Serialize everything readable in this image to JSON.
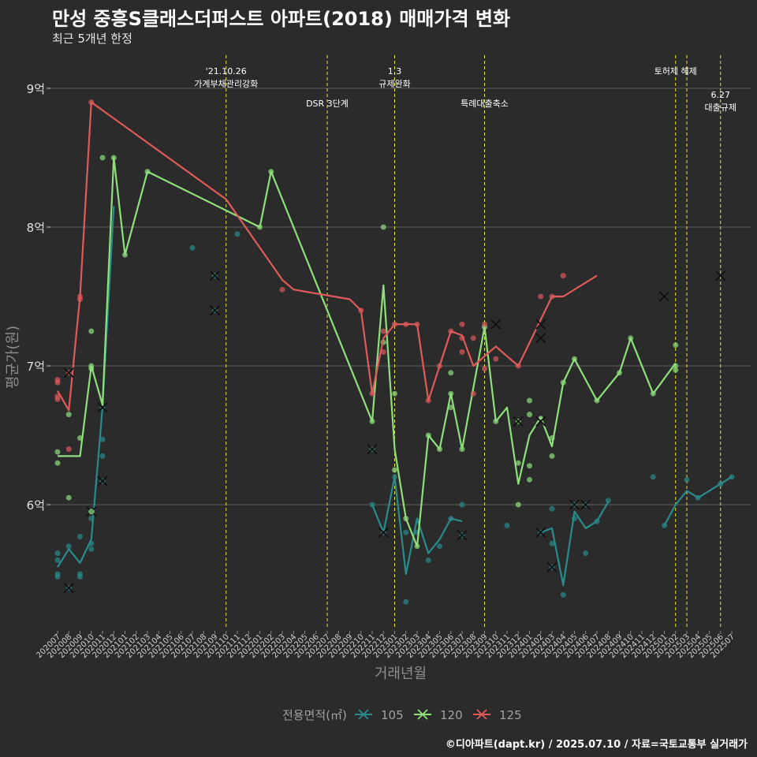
{
  "header": {
    "title": "만성 중흥S클래스더퍼스트 아파트(2018) 매매가격 변화",
    "subtitle": "최근 5개년 한정"
  },
  "caption": "©디아파트(dapt.kr) / 2025.07.10 / 자료=국토교통부 실거래가",
  "colors": {
    "105": "#2a8c8a",
    "120": "#8ee07a",
    "125": "#e05a5a",
    "vline": "#e5e53a",
    "grid": "#5e5e5e",
    "background": "#2b2b2c"
  },
  "chart_data": {
    "type": "line",
    "xlabel": "거래년월",
    "ylabel": "평균가(원)",
    "ylim": [
      5.1,
      9.25
    ],
    "yticks": [
      {
        "value": 6,
        "label": "6억"
      },
      {
        "value": 7,
        "label": "7억"
      },
      {
        "value": 8,
        "label": "8억"
      },
      {
        "value": 9,
        "label": "9억"
      }
    ],
    "grid": true,
    "legend": {
      "title": "전용면적(㎡)",
      "position": "bottom"
    },
    "categories": [
      "202007",
      "202008",
      "202009",
      "202010",
      "202011",
      "202012",
      "202101",
      "202102",
      "202103",
      "202104",
      "202105",
      "202106",
      "202107",
      "202108",
      "202109",
      "202110",
      "202111",
      "202112",
      "202201",
      "202202",
      "202203",
      "202204",
      "202205",
      "202206",
      "202207",
      "202208",
      "202209",
      "202210",
      "202211",
      "202212",
      "202301",
      "202302",
      "202303",
      "202304",
      "202305",
      "202306",
      "202307",
      "202308",
      "202309",
      "202310",
      "202311",
      "202312",
      "202401",
      "202402",
      "202403",
      "202404",
      "202405",
      "202406",
      "202407",
      "202408",
      "202409",
      "202410",
      "202411",
      "202412",
      "202501",
      "202502",
      "202503",
      "202504",
      "202505",
      "202506",
      "202507"
    ],
    "series": [
      {
        "name": "105",
        "line": [
          [
            0,
            5.55
          ],
          [
            1,
            5.68
          ],
          [
            2,
            5.58
          ],
          [
            3,
            5.75
          ],
          [
            4,
            6.7
          ],
          [
            5,
            8.15
          ],
          [
            null,
            null
          ],
          [
            28,
            6.0
          ],
          [
            29,
            5.8
          ],
          [
            30,
            6.2
          ],
          [
            31,
            5.5
          ],
          [
            32,
            5.9
          ],
          [
            33,
            5.65
          ],
          [
            34,
            5.75
          ],
          [
            35,
            5.9
          ],
          [
            36,
            5.88
          ],
          [
            null,
            null
          ],
          [
            43,
            5.8
          ],
          [
            44,
            5.83
          ],
          [
            45,
            5.42
          ],
          [
            46,
            5.95
          ],
          [
            47,
            5.83
          ],
          [
            48,
            5.88
          ],
          [
            49,
            6.02
          ],
          [
            null,
            null
          ],
          [
            54,
            5.85
          ],
          [
            55,
            6.0
          ],
          [
            56,
            6.1
          ],
          [
            57,
            6.05
          ],
          [
            59,
            6.15
          ],
          [
            60,
            6.2
          ]
        ],
        "points": [
          [
            0,
            5.65
          ],
          [
            0,
            5.6
          ],
          [
            0,
            5.5
          ],
          [
            0,
            5.48
          ],
          [
            1,
            5.4
          ],
          [
            1,
            5.7
          ],
          [
            2,
            5.77
          ],
          [
            2,
            5.5
          ],
          [
            2,
            5.48
          ],
          [
            3,
            5.95
          ],
          [
            3,
            5.9
          ],
          [
            3,
            5.72
          ],
          [
            3,
            5.68
          ],
          [
            4,
            6.47
          ],
          [
            4,
            6.35
          ],
          [
            4,
            6.17
          ],
          [
            4,
            6.7
          ],
          [
            12,
            7.85
          ],
          [
            14,
            7.65
          ],
          [
            14,
            7.4
          ],
          [
            16,
            7.95
          ],
          [
            28,
            6.4
          ],
          [
            28,
            6.0
          ],
          [
            29,
            5.8
          ],
          [
            30,
            6.2
          ],
          [
            31,
            5.3
          ],
          [
            31,
            5.8
          ],
          [
            32,
            5.8
          ],
          [
            33,
            5.6
          ],
          [
            34,
            5.7
          ],
          [
            35,
            5.9
          ],
          [
            36,
            6.0
          ],
          [
            36,
            5.78
          ],
          [
            40,
            5.85
          ],
          [
            43,
            5.8
          ],
          [
            44,
            5.55
          ],
          [
            44,
            5.72
          ],
          [
            44,
            5.97
          ],
          [
            45,
            5.35
          ],
          [
            46,
            6.0
          ],
          [
            46,
            5.9
          ],
          [
            47,
            6.0
          ],
          [
            47,
            5.65
          ],
          [
            48,
            5.88
          ],
          [
            49,
            6.03
          ],
          [
            53,
            6.2
          ],
          [
            54,
            5.85
          ],
          [
            56,
            6.18
          ],
          [
            57,
            6.05
          ],
          [
            59,
            6.15
          ],
          [
            60,
            6.2
          ]
        ]
      },
      {
        "name": "120",
        "line": [
          [
            0,
            6.35
          ],
          [
            1,
            6.35
          ],
          [
            2,
            6.35
          ],
          [
            3,
            7.0
          ],
          [
            4,
            6.72
          ],
          [
            5,
            8.5
          ],
          [
            6,
            7.8
          ],
          [
            8,
            8.4
          ],
          [
            18,
            8.0
          ],
          [
            19,
            8.4
          ],
          [
            28,
            6.6
          ],
          [
            29,
            7.58
          ],
          [
            30,
            6.4
          ],
          [
            31,
            5.9
          ],
          [
            32,
            5.7
          ],
          [
            33,
            6.5
          ],
          [
            34,
            6.4
          ],
          [
            35,
            6.8
          ],
          [
            36,
            6.4
          ],
          [
            38,
            7.28
          ],
          [
            39,
            6.6
          ],
          [
            40,
            6.7
          ],
          [
            41,
            6.15
          ],
          [
            42,
            6.5
          ],
          [
            43,
            6.63
          ],
          [
            44,
            6.42
          ],
          [
            45,
            6.88
          ],
          [
            46,
            7.05
          ],
          [
            48,
            6.75
          ],
          [
            50,
            6.95
          ],
          [
            51,
            7.2
          ],
          [
            53,
            6.8
          ],
          [
            55,
            7.02
          ]
        ],
        "points": [
          [
            0,
            6.38
          ],
          [
            0,
            6.3
          ],
          [
            1,
            6.65
          ],
          [
            1,
            6.05
          ],
          [
            2,
            6.48
          ],
          [
            3,
            6.98
          ],
          [
            3,
            7.0
          ],
          [
            3,
            7.25
          ],
          [
            3,
            5.95
          ],
          [
            4,
            8.5
          ],
          [
            5,
            8.5
          ],
          [
            6,
            7.8
          ],
          [
            8,
            8.4
          ],
          [
            18,
            8.0
          ],
          [
            19,
            8.4
          ],
          [
            28,
            6.6
          ],
          [
            29,
            7.17
          ],
          [
            29,
            8.0
          ],
          [
            30,
            6.8
          ],
          [
            30,
            6.25
          ],
          [
            31,
            5.9
          ],
          [
            32,
            5.7
          ],
          [
            33,
            6.5
          ],
          [
            34,
            6.4
          ],
          [
            35,
            6.8
          ],
          [
            35,
            6.95
          ],
          [
            35,
            6.7
          ],
          [
            36,
            6.4
          ],
          [
            38,
            7.28
          ],
          [
            39,
            6.6
          ],
          [
            41,
            6.6
          ],
          [
            41,
            6.3
          ],
          [
            41,
            6.0
          ],
          [
            42,
            6.75
          ],
          [
            42,
            6.65
          ],
          [
            42,
            6.28
          ],
          [
            42,
            6.18
          ],
          [
            43,
            6.62
          ],
          [
            44,
            6.48
          ],
          [
            44,
            6.35
          ],
          [
            45,
            6.88
          ],
          [
            46,
            7.05
          ],
          [
            48,
            6.75
          ],
          [
            50,
            6.95
          ],
          [
            51,
            7.2
          ],
          [
            53,
            6.8
          ],
          [
            55,
            7.15
          ],
          [
            55,
            7.0
          ],
          [
            55,
            6.97
          ]
        ]
      },
      {
        "name": "125",
        "line": [
          [
            0,
            6.82
          ],
          [
            1,
            6.68
          ],
          [
            2,
            7.5
          ],
          [
            3,
            8.9
          ],
          [
            15,
            8.2
          ],
          [
            20,
            7.62
          ],
          [
            21,
            7.55
          ],
          [
            26,
            7.48
          ],
          [
            27,
            7.4
          ],
          [
            28,
            6.8
          ],
          [
            29,
            7.2
          ],
          [
            30,
            7.3
          ],
          [
            31,
            7.3
          ],
          [
            32,
            7.3
          ],
          [
            33,
            6.75
          ],
          [
            34,
            7.0
          ],
          [
            35,
            7.25
          ],
          [
            36,
            7.22
          ],
          [
            37,
            7.0
          ],
          [
            39,
            7.14
          ],
          [
            40,
            7.07
          ],
          [
            41,
            7.0
          ],
          [
            44,
            7.5
          ],
          [
            45,
            7.5
          ],
          [
            48,
            7.65
          ]
        ],
        "points": [
          [
            0,
            6.9
          ],
          [
            0,
            6.88
          ],
          [
            0,
            6.78
          ],
          [
            0,
            6.76
          ],
          [
            1,
            6.95
          ],
          [
            1,
            6.4
          ],
          [
            2,
            7.5
          ],
          [
            2,
            7.48
          ],
          [
            3,
            8.9
          ],
          [
            20,
            7.55
          ],
          [
            27,
            7.4
          ],
          [
            28,
            6.8
          ],
          [
            29,
            7.25
          ],
          [
            29,
            7.1
          ],
          [
            30,
            7.3
          ],
          [
            31,
            7.3
          ],
          [
            32,
            7.3
          ],
          [
            33,
            6.75
          ],
          [
            34,
            7.0
          ],
          [
            35,
            7.25
          ],
          [
            36,
            7.3
          ],
          [
            36,
            7.2
          ],
          [
            36,
            7.1
          ],
          [
            37,
            7.2
          ],
          [
            37,
            6.8
          ],
          [
            38,
            7.3
          ],
          [
            38,
            6.98
          ],
          [
            39,
            7.05
          ],
          [
            41,
            7.0
          ],
          [
            43,
            7.5
          ],
          [
            44,
            7.5
          ],
          [
            45,
            7.65
          ]
        ]
      }
    ],
    "crosses": {
      "105": [
        [
          1,
          5.4
        ],
        [
          4,
          6.17
        ],
        [
          3,
          5.95
        ],
        [
          4,
          6.7
        ],
        [
          14,
          7.65
        ],
        [
          14,
          7.4
        ],
        [
          28,
          6.4
        ],
        [
          29,
          5.8
        ],
        [
          36,
          5.78
        ],
        [
          43,
          5.8
        ],
        [
          44,
          5.55
        ],
        [
          46,
          6.0
        ],
        [
          47,
          6.0
        ]
      ],
      "120": [
        [
          39,
          7.3
        ],
        [
          41,
          6.6
        ],
        [
          43,
          6.6
        ]
      ],
      "125": [
        [
          1,
          6.95
        ],
        [
          43,
          7.3
        ],
        [
          43,
          7.2
        ],
        [
          54,
          7.5
        ],
        [
          59,
          7.65
        ]
      ]
    },
    "events": [
      {
        "x": 15.0,
        "lines": [
          "'21.10.26",
          "가계부채관리강화"
        ],
        "row": 0
      },
      {
        "x": 24.0,
        "lines": [
          "DSR 3단계"
        ],
        "row": 1
      },
      {
        "x": 30.0,
        "lines": [
          "1.3",
          "규제완화"
        ],
        "row": 0
      },
      {
        "x": 38.0,
        "lines": [
          "특례대출축소"
        ],
        "row": 1
      },
      {
        "x": 55.0,
        "lines": [
          "토허제 해제"
        ],
        "row": 0
      },
      {
        "x": 56.0,
        "lines": [],
        "row": 0
      },
      {
        "x": 59.0,
        "lines": [
          "6.27",
          "대출규제"
        ],
        "row": 2
      }
    ]
  }
}
